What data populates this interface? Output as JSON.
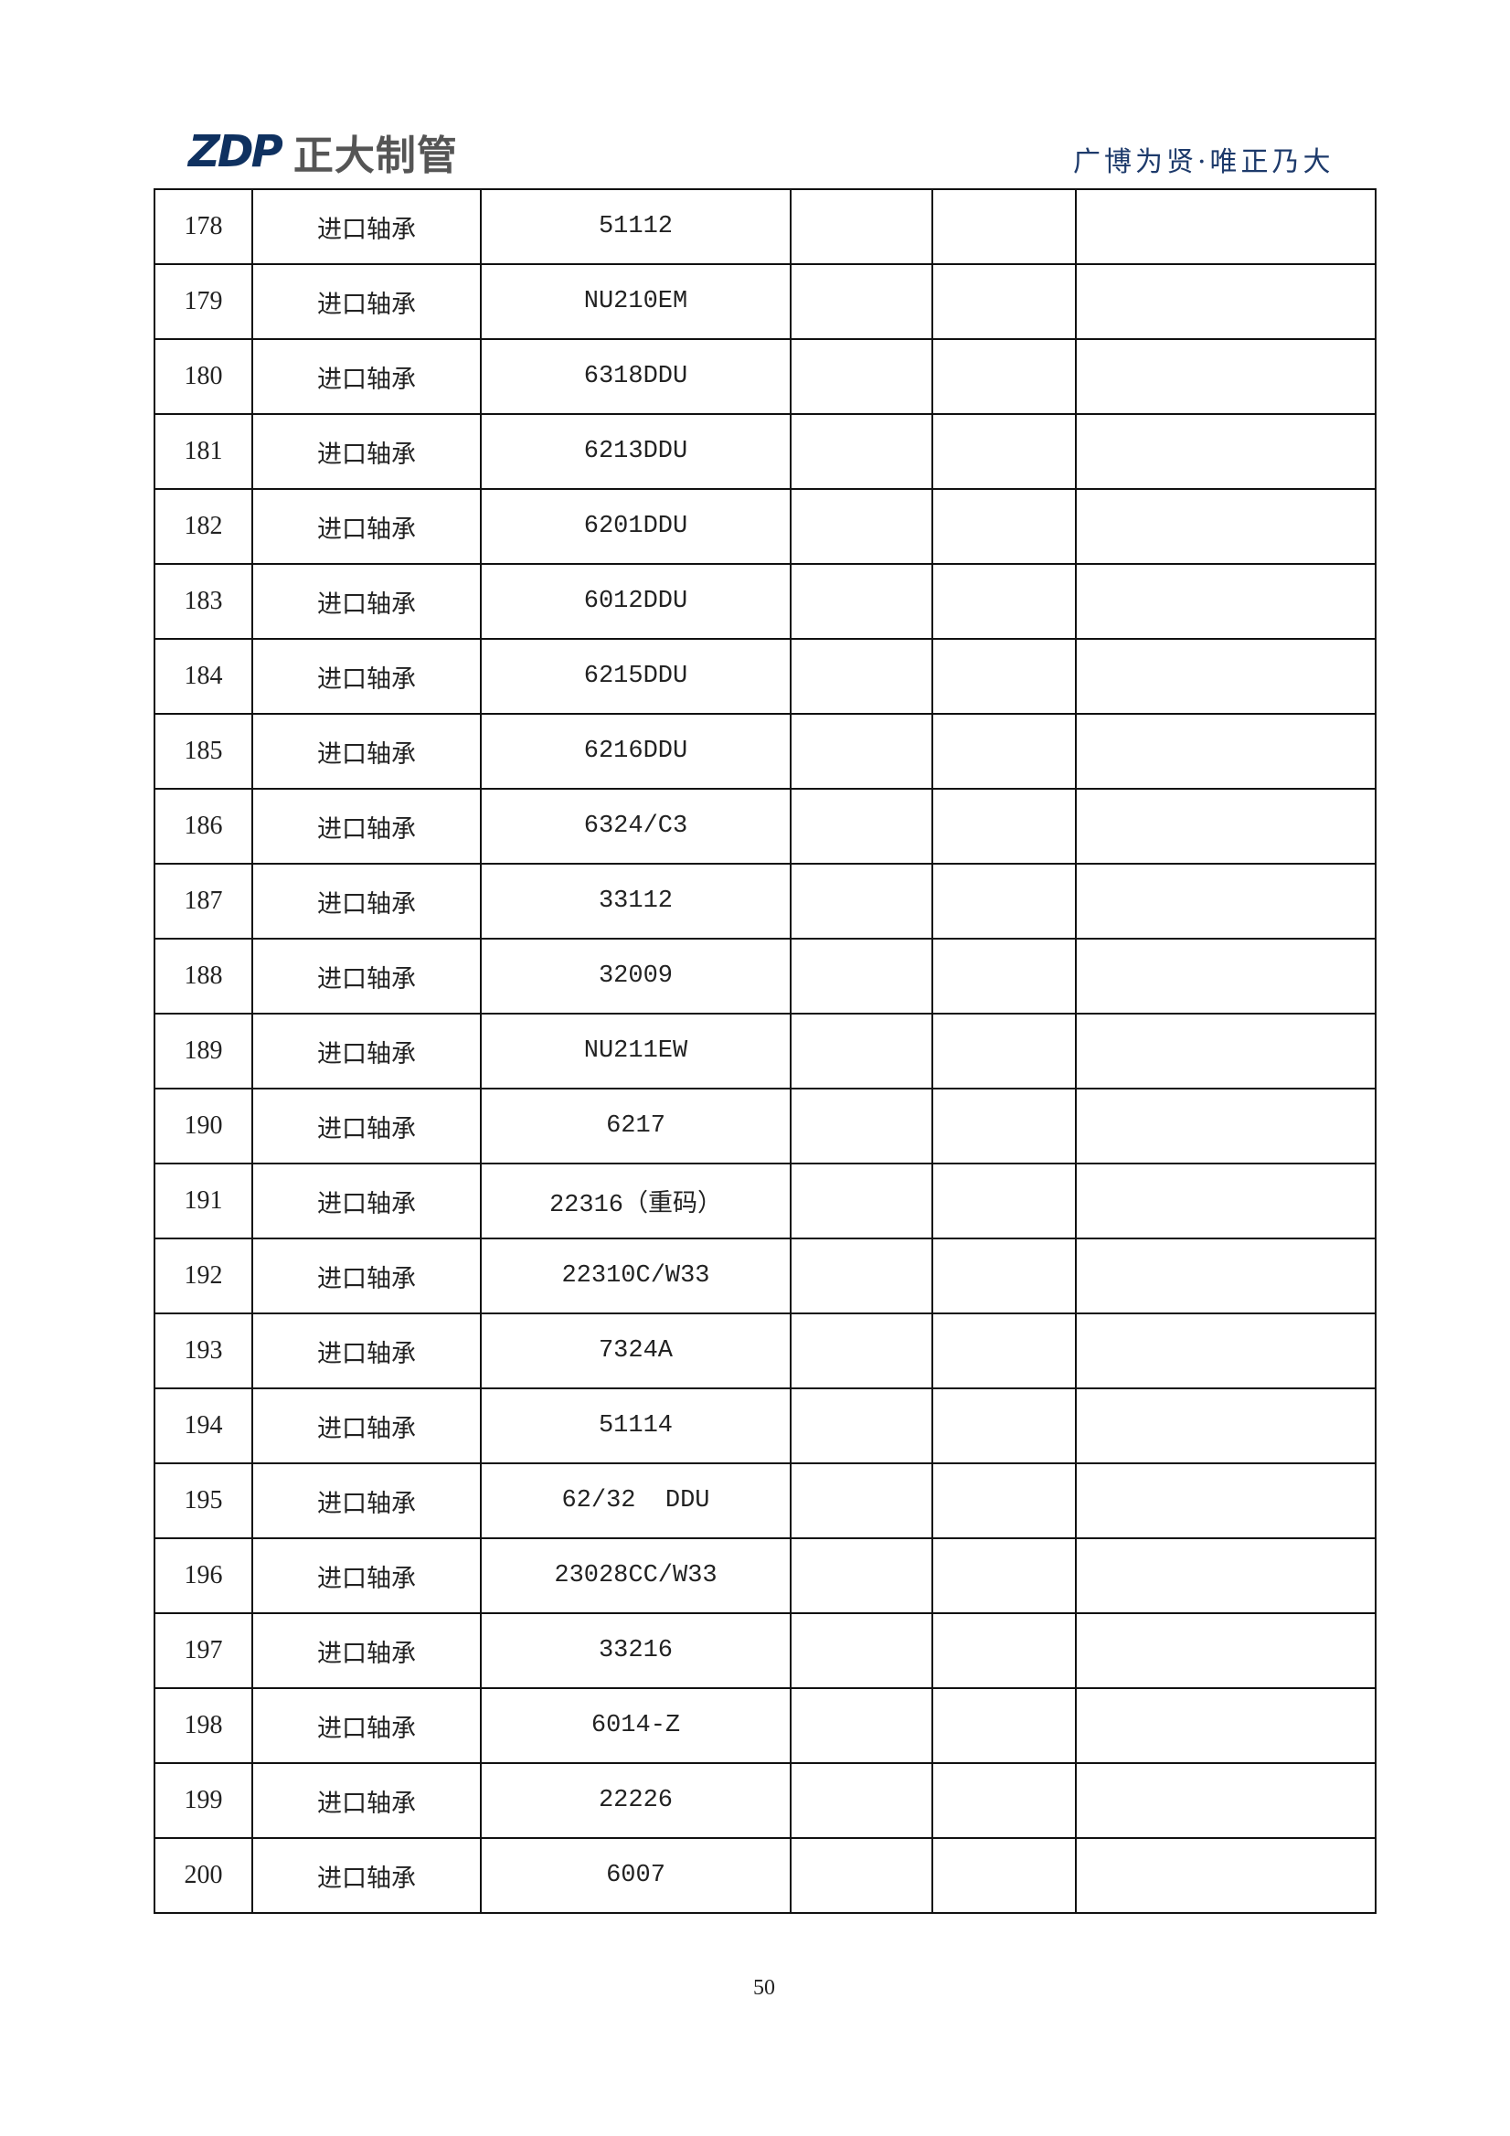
{
  "header": {
    "logo_mark": "ZDP",
    "logo_text": "正大制管",
    "slogan": "广博为贤·唯正乃大",
    "brand_color": "#0f3160"
  },
  "rows": [
    {
      "no": "178",
      "name": "进口轴承",
      "model": "51112"
    },
    {
      "no": "179",
      "name": "进口轴承",
      "model": "NU210EM"
    },
    {
      "no": "180",
      "name": "进口轴承",
      "model": "6318DDU"
    },
    {
      "no": "181",
      "name": "进口轴承",
      "model": "6213DDU"
    },
    {
      "no": "182",
      "name": "进口轴承",
      "model": "6201DDU"
    },
    {
      "no": "183",
      "name": "进口轴承",
      "model": "6012DDU"
    },
    {
      "no": "184",
      "name": "进口轴承",
      "model": "6215DDU"
    },
    {
      "no": "185",
      "name": "进口轴承",
      "model": "6216DDU"
    },
    {
      "no": "186",
      "name": "进口轴承",
      "model": "6324/C3"
    },
    {
      "no": "187",
      "name": "进口轴承",
      "model": "33112"
    },
    {
      "no": "188",
      "name": "进口轴承",
      "model": "32009"
    },
    {
      "no": "189",
      "name": "进口轴承",
      "model": "NU211EW"
    },
    {
      "no": "190",
      "name": "进口轴承",
      "model": "6217"
    },
    {
      "no": "191",
      "name": "进口轴承",
      "model": "22316（重码）"
    },
    {
      "no": "192",
      "name": "进口轴承",
      "model": "22310C/W33"
    },
    {
      "no": "193",
      "name": "进口轴承",
      "model": "7324A"
    },
    {
      "no": "194",
      "name": "进口轴承",
      "model": "51114"
    },
    {
      "no": "195",
      "name": "进口轴承",
      "model": "62/32  DDU"
    },
    {
      "no": "196",
      "name": "进口轴承",
      "model": "23028CC/W33"
    },
    {
      "no": "197",
      "name": "进口轴承",
      "model": "33216"
    },
    {
      "no": "198",
      "name": "进口轴承",
      "model": "6014-Z"
    },
    {
      "no": "199",
      "name": "进口轴承",
      "model": "22226"
    },
    {
      "no": "200",
      "name": "进口轴承",
      "model": "6007"
    }
  ],
  "footer": {
    "page_number": "50"
  }
}
